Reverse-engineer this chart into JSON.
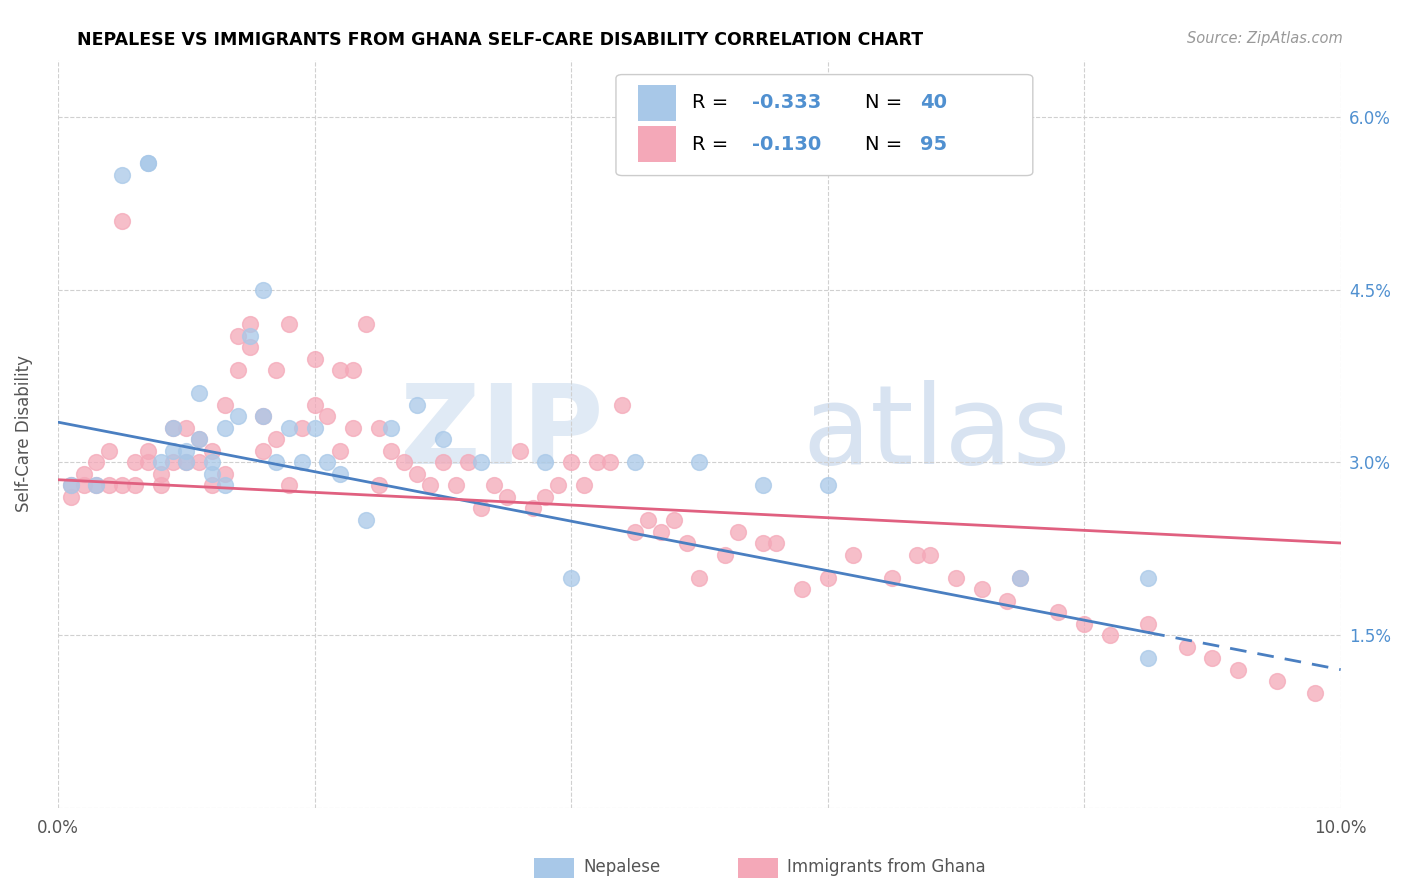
{
  "title": "NEPALESE VS IMMIGRANTS FROM GHANA SELF-CARE DISABILITY CORRELATION CHART",
  "source": "Source: ZipAtlas.com",
  "ylabel": "Self-Care Disability",
  "xlim": [
    0.0,
    0.1
  ],
  "ylim": [
    0.0,
    0.065
  ],
  "xtick_positions": [
    0.0,
    0.02,
    0.04,
    0.06,
    0.08,
    0.1
  ],
  "xticklabels": [
    "0.0%",
    "",
    "",
    "",
    "",
    "10.0%"
  ],
  "ytick_positions": [
    0.0,
    0.015,
    0.03,
    0.045,
    0.06
  ],
  "yticklabels_right": [
    "",
    "1.5%",
    "3.0%",
    "4.5%",
    "6.0%"
  ],
  "legend_R1": "-0.333",
  "legend_N1": "40",
  "legend_R2": "-0.130",
  "legend_N2": "95",
  "color_blue": "#a8c8e8",
  "color_pink": "#f4a8b8",
  "line_color_blue": "#4a7fc1",
  "line_color_pink": "#e06080",
  "watermark_zip": "ZIP",
  "watermark_atlas": "atlas",
  "grid_color": "#d0d0d0",
  "right_tick_color": "#5090d0",
  "nepalese_x": [
    0.001,
    0.003,
    0.005,
    0.007,
    0.007,
    0.008,
    0.009,
    0.009,
    0.01,
    0.01,
    0.011,
    0.011,
    0.012,
    0.012,
    0.013,
    0.013,
    0.014,
    0.015,
    0.016,
    0.016,
    0.017,
    0.018,
    0.019,
    0.02,
    0.021,
    0.022,
    0.024,
    0.026,
    0.028,
    0.03,
    0.033,
    0.038,
    0.04,
    0.045,
    0.05,
    0.055,
    0.06,
    0.075,
    0.085,
    0.085
  ],
  "nepalese_y": [
    0.028,
    0.028,
    0.055,
    0.056,
    0.056,
    0.03,
    0.033,
    0.031,
    0.03,
    0.031,
    0.032,
    0.036,
    0.029,
    0.03,
    0.033,
    0.028,
    0.034,
    0.041,
    0.034,
    0.045,
    0.03,
    0.033,
    0.03,
    0.033,
    0.03,
    0.029,
    0.025,
    0.033,
    0.035,
    0.032,
    0.03,
    0.03,
    0.02,
    0.03,
    0.03,
    0.028,
    0.028,
    0.02,
    0.013,
    0.02
  ],
  "ghana_x": [
    0.001,
    0.001,
    0.002,
    0.002,
    0.003,
    0.003,
    0.004,
    0.004,
    0.005,
    0.005,
    0.006,
    0.006,
    0.007,
    0.007,
    0.008,
    0.008,
    0.009,
    0.009,
    0.01,
    0.01,
    0.011,
    0.011,
    0.012,
    0.012,
    0.013,
    0.013,
    0.014,
    0.014,
    0.015,
    0.015,
    0.016,
    0.016,
    0.017,
    0.017,
    0.018,
    0.018,
    0.019,
    0.02,
    0.02,
    0.021,
    0.022,
    0.022,
    0.023,
    0.023,
    0.024,
    0.025,
    0.025,
    0.026,
    0.027,
    0.028,
    0.029,
    0.03,
    0.031,
    0.032,
    0.033,
    0.034,
    0.035,
    0.036,
    0.037,
    0.038,
    0.039,
    0.04,
    0.041,
    0.042,
    0.043,
    0.044,
    0.045,
    0.046,
    0.047,
    0.048,
    0.049,
    0.05,
    0.052,
    0.053,
    0.055,
    0.056,
    0.058,
    0.06,
    0.062,
    0.065,
    0.067,
    0.068,
    0.07,
    0.072,
    0.074,
    0.075,
    0.078,
    0.08,
    0.082,
    0.085,
    0.088,
    0.09,
    0.092,
    0.095,
    0.098
  ],
  "ghana_y": [
    0.027,
    0.028,
    0.028,
    0.029,
    0.028,
    0.03,
    0.028,
    0.031,
    0.028,
    0.051,
    0.028,
    0.03,
    0.031,
    0.03,
    0.029,
    0.028,
    0.03,
    0.033,
    0.03,
    0.033,
    0.03,
    0.032,
    0.031,
    0.028,
    0.035,
    0.029,
    0.041,
    0.038,
    0.042,
    0.04,
    0.031,
    0.034,
    0.038,
    0.032,
    0.042,
    0.028,
    0.033,
    0.039,
    0.035,
    0.034,
    0.038,
    0.031,
    0.033,
    0.038,
    0.042,
    0.033,
    0.028,
    0.031,
    0.03,
    0.029,
    0.028,
    0.03,
    0.028,
    0.03,
    0.026,
    0.028,
    0.027,
    0.031,
    0.026,
    0.027,
    0.028,
    0.03,
    0.028,
    0.03,
    0.03,
    0.035,
    0.024,
    0.025,
    0.024,
    0.025,
    0.023,
    0.02,
    0.022,
    0.024,
    0.023,
    0.023,
    0.019,
    0.02,
    0.022,
    0.02,
    0.022,
    0.022,
    0.02,
    0.019,
    0.018,
    0.02,
    0.017,
    0.016,
    0.015,
    0.016,
    0.014,
    0.013,
    0.012,
    0.011,
    0.01
  ],
  "blue_line_x0": 0.0,
  "blue_line_y0": 0.0335,
  "blue_line_x1": 0.1,
  "blue_line_y1": 0.012,
  "blue_line_solid_end": 0.085,
  "pink_line_x0": 0.0,
  "pink_line_y0": 0.0285,
  "pink_line_x1": 0.1,
  "pink_line_y1": 0.023
}
